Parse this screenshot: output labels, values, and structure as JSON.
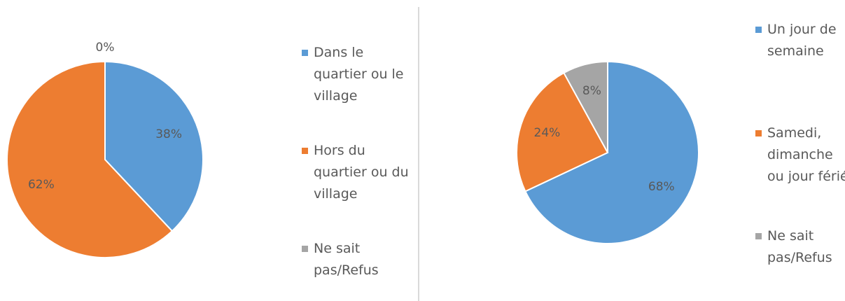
{
  "chart_data": [
    {
      "type": "pie",
      "categories": [
        "Dans le quartier ou le village",
        "Hors du quartier ou du village",
        "Ne sait pas/Refus"
      ],
      "values": [
        38,
        62,
        0
      ],
      "value_labels": [
        "38%",
        "62%",
        "0%"
      ],
      "colors": [
        "#5b9bd5",
        "#ed7d31",
        "#a5a5a5"
      ],
      "legend": "right"
    },
    {
      "type": "pie",
      "categories": [
        "Un jour de semaine",
        "Samedi, dimanche ou jour férié",
        "Ne sait pas/Refus"
      ],
      "values": [
        68,
        24,
        8
      ],
      "value_labels": [
        "68%",
        "24%",
        "8%"
      ],
      "colors": [
        "#5b9bd5",
        "#ed7d31",
        "#a5a5a5"
      ],
      "legend": "right"
    }
  ]
}
